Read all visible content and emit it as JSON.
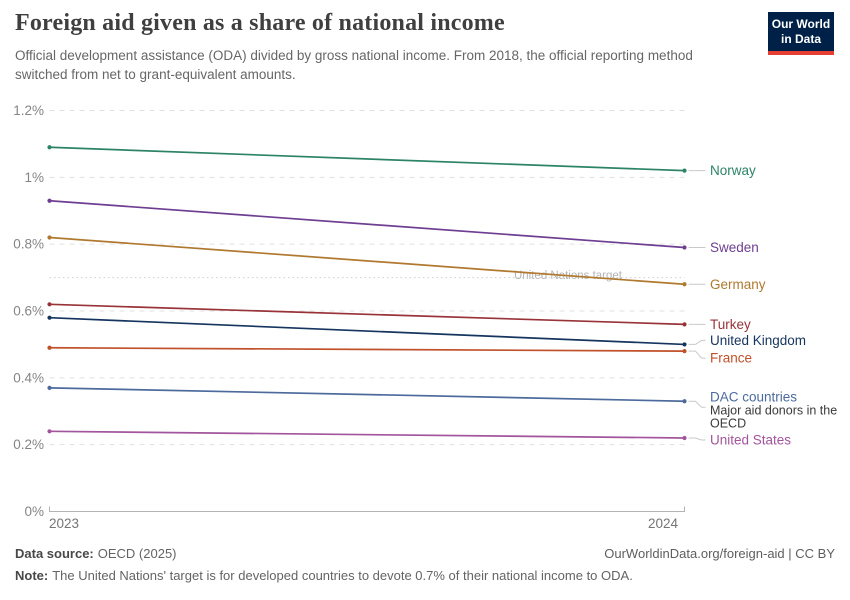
{
  "header": {
    "title": "Foreign aid given as a share of national income",
    "subtitle": "Official development assistance (ODA) divided by gross national income. From 2018, the official reporting method switched from net to grant-equivalent amounts.",
    "logo_line1": "Our World",
    "logo_line2": "in Data",
    "logo_bg": "#002147",
    "logo_accent": "#E63E33"
  },
  "chart_data": {
    "type": "line",
    "x": [
      2023,
      2024
    ],
    "x_tick_labels": [
      "2023",
      "2024"
    ],
    "ylim": [
      0,
      1.2
    ],
    "unit": "%",
    "grid": true,
    "legend_position": "right",
    "y_ticks": [
      0,
      0.2,
      0.4,
      0.6,
      0.8,
      1.0,
      1.2
    ],
    "y_tick_labels": [
      "0%",
      "0.2%",
      "0.4%",
      "0.6%",
      "0.8%",
      "1%",
      "1.2%"
    ],
    "target_line": {
      "value": 0.7,
      "label": "United Nations target"
    },
    "series": [
      {
        "name": "Norway",
        "values": [
          1.09,
          1.02
        ],
        "color": "#2C8465"
      },
      {
        "name": "Sweden",
        "values": [
          0.93,
          0.79
        ],
        "color": "#6D3E91"
      },
      {
        "name": "Germany",
        "values": [
          0.82,
          0.68
        ],
        "color": "#B0792F"
      },
      {
        "name": "Turkey",
        "values": [
          0.62,
          0.56
        ],
        "color": "#983339"
      },
      {
        "name": "United Kingdom",
        "values": [
          0.58,
          0.5
        ],
        "color": "#15355F",
        "label_dy": -4
      },
      {
        "name": "France",
        "values": [
          0.49,
          0.48
        ],
        "color": "#C1512B",
        "label_dy": 7
      },
      {
        "name": "DAC countries",
        "values": [
          0.37,
          0.33
        ],
        "color": "#4C6A9C",
        "label_dy": -4,
        "connector_dy": 6,
        "sublabel_lines": [
          "Major aid donors in the",
          "OECD"
        ]
      },
      {
        "name": "United States",
        "values": [
          0.24,
          0.22
        ],
        "color": "#A2559C",
        "label_dy": 2
      }
    ]
  },
  "footer": {
    "source_label": "Data source:",
    "source_value": "OECD (2025)",
    "link": "OurWorldinData.org/foreign-aid | CC BY",
    "note_label": "Note:",
    "note_value": "The United Nations' target is for developed countries to devote 0.7% of their national income to ODA."
  }
}
